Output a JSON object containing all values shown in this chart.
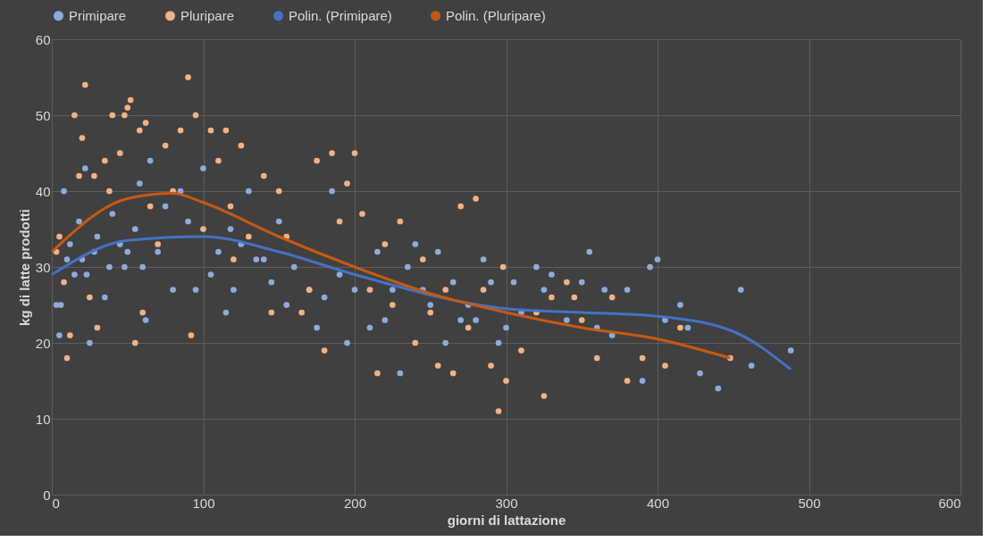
{
  "chart_data": {
    "type": "scatter",
    "xlabel": "giorni di lattazione",
    "ylabel": "kg di latte prodotti",
    "xlim": [
      0,
      600
    ],
    "xticks": [
      0,
      100,
      200,
      300,
      400,
      500,
      600
    ],
    "ylim": [
      0,
      60
    ],
    "yticks": [
      0,
      10,
      20,
      30,
      40,
      50,
      60
    ],
    "grid": true,
    "legend": "top",
    "series": [
      {
        "name": "Primipare",
        "marker": "circle",
        "color": "#8faadc",
        "x": [
          3,
          5,
          6,
          8,
          10,
          12,
          15,
          18,
          20,
          22,
          23,
          25,
          28,
          30,
          35,
          38,
          40,
          45,
          48,
          50,
          55,
          58,
          60,
          62,
          65,
          70,
          75,
          80,
          85,
          90,
          95,
          100,
          105,
          110,
          115,
          118,
          120,
          125,
          130,
          135,
          140,
          145,
          150,
          155,
          160,
          170,
          175,
          180,
          185,
          190,
          195,
          200,
          210,
          215,
          220,
          225,
          230,
          235,
          240,
          245,
          250,
          255,
          260,
          265,
          270,
          275,
          280,
          285,
          290,
          295,
          300,
          305,
          310,
          320,
          325,
          330,
          340,
          350,
          355,
          360,
          365,
          370,
          380,
          390,
          395,
          400,
          405,
          415,
          420,
          428,
          440,
          455,
          462,
          488
        ],
        "values": [
          25,
          21,
          25,
          40,
          31,
          33,
          29,
          36,
          31,
          43,
          29,
          20,
          32,
          34,
          26,
          30,
          37,
          33,
          30,
          32,
          35,
          41,
          30,
          23,
          44,
          32,
          38,
          27,
          40,
          36,
          27,
          43,
          29,
          32,
          24,
          35,
          27,
          33,
          40,
          31,
          31,
          28,
          36,
          25,
          30,
          27,
          22,
          26,
          40,
          29,
          20,
          27,
          22,
          32,
          23,
          27,
          16,
          30,
          33,
          27,
          25,
          32,
          20,
          28,
          23,
          25,
          23,
          31,
          28,
          20,
          22,
          28,
          24,
          30,
          27,
          29,
          23,
          28,
          32,
          22,
          27,
          21,
          27,
          15,
          30,
          31,
          23,
          25,
          22,
          16,
          14,
          27,
          17,
          19
        ]
      },
      {
        "name": "Pluripare",
        "marker": "circle",
        "color": "#f4b183",
        "x": [
          3,
          5,
          8,
          10,
          12,
          15,
          18,
          20,
          22,
          25,
          28,
          30,
          35,
          38,
          40,
          45,
          48,
          50,
          52,
          55,
          58,
          60,
          62,
          65,
          70,
          75,
          80,
          85,
          90,
          92,
          95,
          100,
          105,
          110,
          115,
          118,
          120,
          125,
          130,
          140,
          145,
          150,
          155,
          165,
          170,
          175,
          180,
          185,
          190,
          195,
          200,
          205,
          210,
          215,
          220,
          225,
          230,
          240,
          245,
          250,
          255,
          260,
          265,
          270,
          275,
          280,
          285,
          290,
          295,
          298,
          300,
          310,
          320,
          325,
          330,
          340,
          345,
          350,
          360,
          370,
          380,
          390,
          405,
          415,
          448
        ],
        "values": [
          32,
          34,
          28,
          18,
          21,
          50,
          42,
          47,
          54,
          26,
          42,
          22,
          44,
          40,
          50,
          45,
          50,
          51,
          52,
          20,
          48,
          24,
          49,
          38,
          33,
          46,
          40,
          48,
          55,
          21,
          50,
          35,
          48,
          44,
          48,
          38,
          31,
          46,
          34,
          42,
          24,
          40,
          34,
          24,
          27,
          44,
          19,
          45,
          36,
          41,
          45,
          37,
          27,
          16,
          33,
          25,
          36,
          20,
          31,
          24,
          17,
          27,
          16,
          38,
          22,
          39,
          27,
          17,
          11,
          30,
          15,
          19,
          24,
          13,
          26,
          28,
          26,
          23,
          18,
          26,
          15,
          18,
          17,
          22,
          18
        ]
      },
      {
        "name": "Polin. (Primipare)",
        "type": "line",
        "marker": "none",
        "color": "#4472c4",
        "x": [
          0,
          50,
          100,
          150,
          200,
          300,
          350,
          400,
          450,
          488
        ],
        "values": [
          29,
          33.5,
          34,
          32,
          29,
          24.5,
          24,
          23.5,
          21.5,
          16.5
        ]
      },
      {
        "name": "Polin. (Pluripare)",
        "type": "line",
        "marker": "none",
        "color": "#c55a11",
        "x": [
          0,
          50,
          80,
          100,
          150,
          200,
          250,
          300,
          350,
          400,
          448
        ],
        "values": [
          32,
          39,
          39.7,
          38.5,
          34,
          30,
          26.5,
          24,
          22,
          20.5,
          18
        ]
      }
    ]
  }
}
